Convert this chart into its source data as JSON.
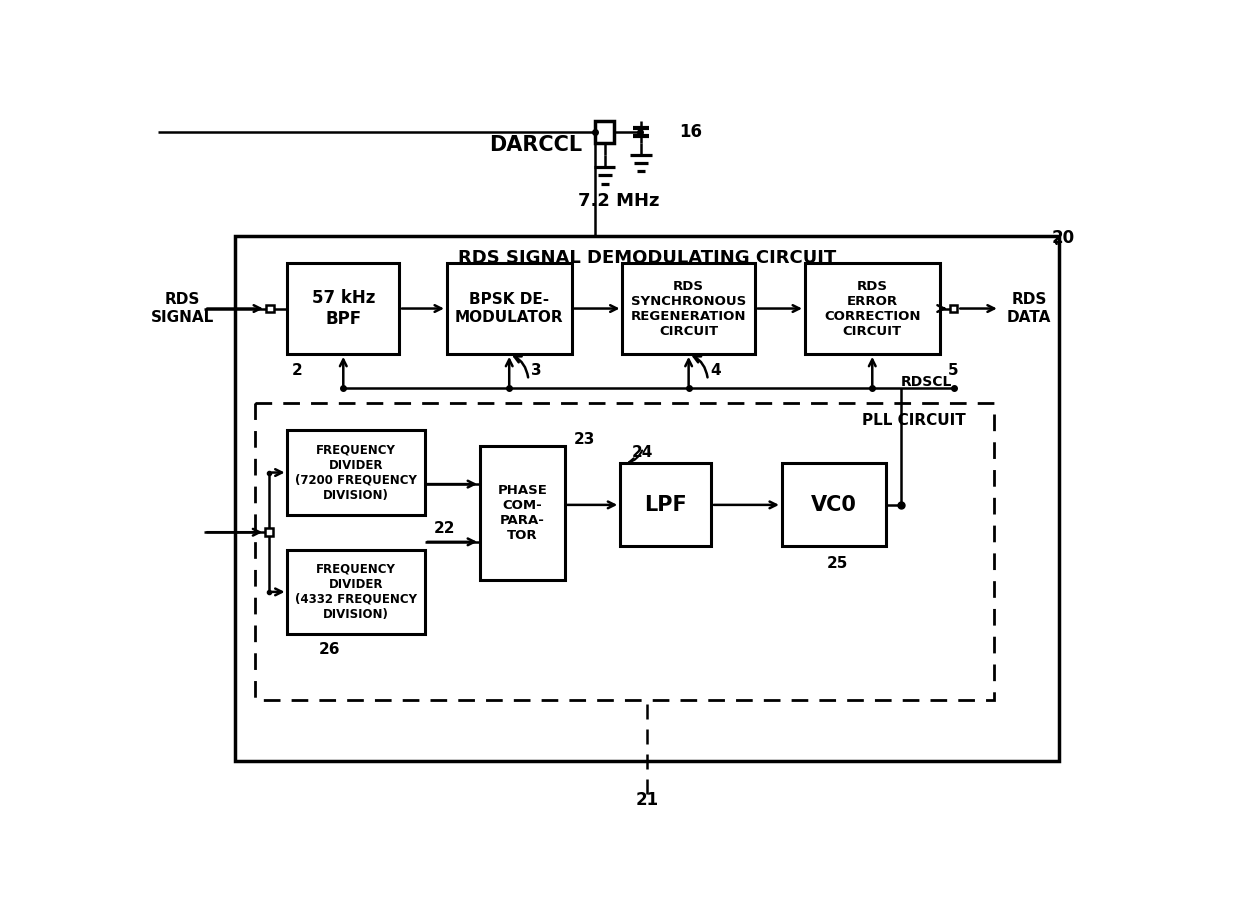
{
  "bg_color": "#ffffff",
  "line_color": "#000000",
  "title": "RDS SIGNAL DEMODULATING CIRCUIT",
  "pll_title": "PLL CIRCUIT",
  "darc_label": "DARCCL",
  "freq_label": "7.2 MHz",
  "ref_num_16": "16",
  "ref_num_20": "20",
  "ref_num_21": "21",
  "ref_num_2": "2",
  "ref_num_3": "3",
  "ref_num_4": "4",
  "ref_num_5": "5",
  "ref_num_22": "22",
  "ref_num_23": "23",
  "ref_num_24": "24",
  "ref_num_25": "25",
  "ref_num_26": "26",
  "rdscl_label": "RDSCL",
  "rds_signal_label": "RDS\nSIGNAL",
  "rds_data_label": "RDS\nDATA",
  "box1_label": "57 kHz\nBPF",
  "box2_label": "BPSK DE-\nMODULATOR",
  "box3_label": "RDS\nSYNCHRONOUS\nREGENERATION\nCIRCUIT",
  "box4_label": "RDS\nERROR\nCORRECTION\nCIRCUIT",
  "box_fd1_label": "FREQUENCY\nDIVIDER\n(7200 FREQUENCY\nDIVISION)",
  "box_fd2_label": "FREQUENCY\nDIVIDER\n(4332 FREQUENCY\nDIVISION)",
  "box_pc_label": "PHASE\nCOM-\nPARA-\nTOR",
  "box_lpf_label": "LPF",
  "box_vco_label": "VC0"
}
